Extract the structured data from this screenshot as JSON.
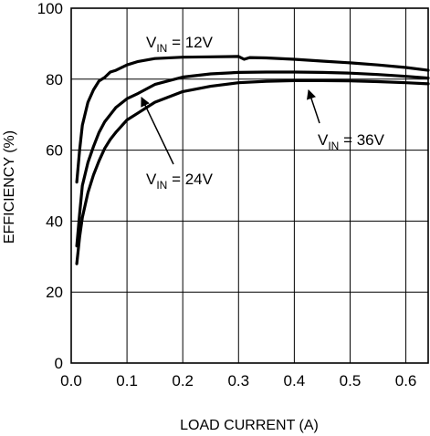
{
  "chart_data": {
    "type": "line",
    "title": "",
    "xlabel": "LOAD CURRENT (A)",
    "ylabel": "EFFICIENCY (%)",
    "xlim": [
      0,
      0.64
    ],
    "ylim": [
      0,
      100
    ],
    "x_ticks": [
      0.0,
      0.1,
      0.2,
      0.3,
      0.4,
      0.5,
      0.6
    ],
    "x_tick_labels": [
      "0.0",
      "0.1",
      "0.2",
      "0.3",
      "0.4",
      "0.5",
      "0.6"
    ],
    "y_ticks": [
      0,
      20,
      40,
      60,
      80,
      100
    ],
    "y_tick_labels": [
      "0",
      "20",
      "40",
      "60",
      "80",
      "100"
    ],
    "grid": true,
    "series": [
      {
        "label_main": "V",
        "label_sub": "IN",
        "label_rest": " = 12V",
        "x": [
          0.01,
          0.015,
          0.02,
          0.03,
          0.04,
          0.05,
          0.06,
          0.07,
          0.08,
          0.1,
          0.12,
          0.15,
          0.2,
          0.25,
          0.3,
          0.31,
          0.32,
          0.35,
          0.4,
          0.45,
          0.5,
          0.55,
          0.6,
          0.64
        ],
        "y": [
          51,
          60,
          67,
          73.5,
          77,
          79.5,
          80.5,
          82,
          82.5,
          84,
          85,
          85.8,
          86.2,
          86.3,
          86.4,
          85.6,
          86.1,
          86,
          85.6,
          85.1,
          84.6,
          84,
          83.3,
          82.5
        ]
      },
      {
        "label_main": "V",
        "label_sub": "IN",
        "label_rest": " = 24V",
        "x": [
          0.01,
          0.015,
          0.02,
          0.03,
          0.04,
          0.05,
          0.06,
          0.07,
          0.08,
          0.1,
          0.12,
          0.15,
          0.2,
          0.25,
          0.3,
          0.35,
          0.4,
          0.45,
          0.5,
          0.55,
          0.6,
          0.64
        ],
        "y": [
          33,
          42,
          50,
          56.5,
          61,
          65,
          68,
          70,
          72,
          74.5,
          76,
          78.5,
          80.6,
          81.5,
          81.9,
          82,
          82,
          81.9,
          81.7,
          81.3,
          80.8,
          80.3
        ]
      },
      {
        "label_main": "V",
        "label_sub": "IN",
        "label_rest": " = 36V",
        "x": [
          0.01,
          0.015,
          0.02,
          0.03,
          0.04,
          0.05,
          0.06,
          0.07,
          0.08,
          0.1,
          0.12,
          0.15,
          0.2,
          0.25,
          0.3,
          0.35,
          0.4,
          0.45,
          0.5,
          0.55,
          0.6,
          0.64
        ],
        "y": [
          28,
          35.5,
          41,
          48,
          53,
          57,
          60.5,
          63,
          65,
          68.5,
          70.5,
          73.5,
          76.5,
          78,
          79,
          79.4,
          79.6,
          79.6,
          79.5,
          79.3,
          79,
          78.7
        ]
      }
    ]
  }
}
